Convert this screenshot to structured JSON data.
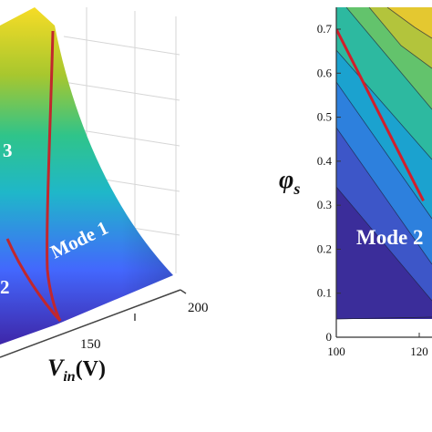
{
  "chart_data": [
    {
      "type": "surface",
      "x_ticks": [
        "150",
        "200"
      ],
      "x_label": {
        "main": "V",
        "sub": "in",
        "unit": "(V)"
      },
      "region_labels": [
        "Mode 1",
        "2",
        "3"
      ],
      "colormap": [
        "#3e26a8",
        "#4367fd",
        "#1fb7c9",
        "#2fc48a",
        "#a8c72e",
        "#f6dc26"
      ]
    },
    {
      "type": "heatmap",
      "x_ticks": [
        100,
        120
      ],
      "y_ticks": [
        0,
        0.1,
        0.2,
        0.3,
        0.4,
        0.5,
        0.6,
        0.7
      ],
      "y_label": {
        "main": "φ",
        "sub": "s"
      },
      "region_labels": [
        "Mode 2"
      ],
      "boundary_line": {
        "x": [
          100,
          121
        ],
        "y": [
          0.7,
          0.31
        ]
      },
      "colormap": [
        "#3b2d9a",
        "#3d56c8",
        "#2d80dd",
        "#1ba2cf",
        "#2db9a0",
        "#63c36c",
        "#b3c43c",
        "#e4c830"
      ]
    }
  ]
}
